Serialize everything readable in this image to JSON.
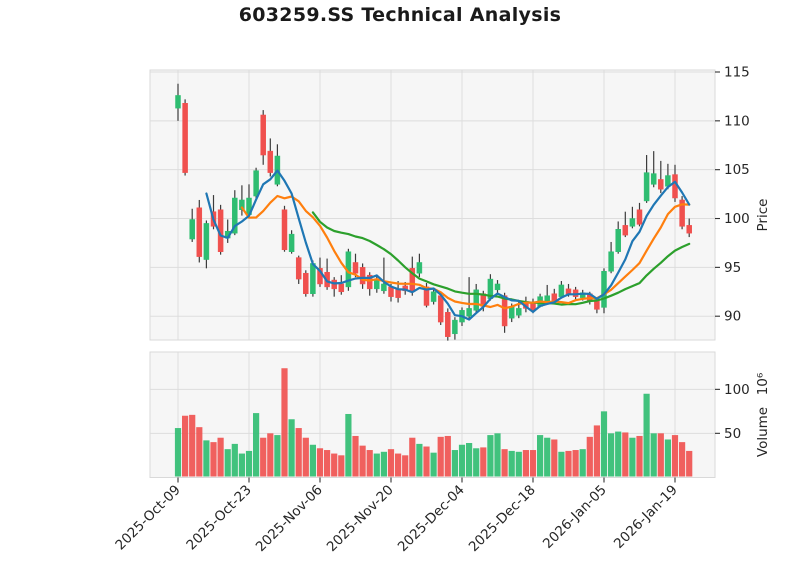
{
  "title": "603259.SS Technical Analysis",
  "price_axis": {
    "label": "Price",
    "ticks": [
      90,
      95,
      100,
      105,
      110,
      115
    ]
  },
  "volume_axis": {
    "label": "Volume",
    "offset_text": "10⁶",
    "ticks": [
      50,
      100
    ]
  },
  "x_axis": {
    "tick_labels": [
      "2025-Oct-09",
      "2025-Oct-23",
      "2025-Nov-06",
      "2025-Nov-20",
      "2025-Dec-04",
      "2025-Dec-18",
      "2026-Jan-05",
      "2026-Jan-19"
    ],
    "tick_indices": [
      0,
      10,
      20,
      30,
      40,
      50,
      60,
      70
    ]
  },
  "colors": {
    "up": "#2EBD71",
    "down": "#F0504E",
    "wick": "#3C3C3C",
    "ma5": "#1F77B4",
    "ma10": "#FF7F0E",
    "ma20": "#2CA02C",
    "panel_bg": "#F6F6F6",
    "grid": "#DDDDDD",
    "border": "#D9D9D9",
    "tick_text": "#262626"
  },
  "chart_data": {
    "type": "candlestick",
    "symbol": "603259.SS",
    "title": "603259.SS Technical Analysis",
    "ylabel_price": "Price",
    "ylabel_volume": "Volume",
    "volume_unit": "10^6",
    "price_ylim": [
      87.5,
      115.2
    ],
    "volume_ylim": [
      0,
      142
    ],
    "grid": true,
    "moving_average_windows": [
      5,
      10,
      20
    ],
    "dates": [
      "2025-10-09",
      "2025-10-10",
      "2025-10-13",
      "2025-10-14",
      "2025-10-15",
      "2025-10-16",
      "2025-10-17",
      "2025-10-20",
      "2025-10-21",
      "2025-10-22",
      "2025-10-23",
      "2025-10-24",
      "2025-10-27",
      "2025-10-28",
      "2025-10-29",
      "2025-10-30",
      "2025-10-31",
      "2025-11-03",
      "2025-11-04",
      "2025-11-05",
      "2025-11-06",
      "2025-11-07",
      "2025-11-10",
      "2025-11-11",
      "2025-11-12",
      "2025-11-13",
      "2025-11-14",
      "2025-11-17",
      "2025-11-18",
      "2025-11-19",
      "2025-11-20",
      "2025-11-21",
      "2025-11-24",
      "2025-11-25",
      "2025-11-26",
      "2025-11-27",
      "2025-11-28",
      "2025-12-01",
      "2025-12-02",
      "2025-12-03",
      "2025-12-04",
      "2025-12-05",
      "2025-12-08",
      "2025-12-09",
      "2025-12-10",
      "2025-12-11",
      "2025-12-12",
      "2025-12-15",
      "2025-12-16",
      "2025-12-17",
      "2025-12-18",
      "2025-12-19",
      "2025-12-22",
      "2025-12-23",
      "2025-12-24",
      "2025-12-25",
      "2025-12-26",
      "2025-12-29",
      "2025-12-30",
      "2025-12-31",
      "2026-01-05",
      "2026-01-06",
      "2026-01-07",
      "2026-01-08",
      "2026-01-09",
      "2026-01-12",
      "2026-01-13",
      "2026-01-14",
      "2026-01-15",
      "2026-01-16",
      "2026-01-19",
      "2026-01-20",
      "2026-01-21"
    ],
    "open": [
      111.3,
      111.8,
      97.9,
      101.1,
      95.8,
      100.7,
      100.9,
      98.0,
      98.5,
      100.9,
      100.4,
      102.3,
      110.6,
      106.9,
      103.5,
      100.9,
      96.6,
      96.0,
      94.4,
      92.3,
      94.9,
      94.5,
      93.7,
      93.3,
      93.0,
      95.5,
      95.0,
      94.2,
      92.8,
      92.6,
      93.0,
      92.8,
      93.1,
      94.9,
      94.4,
      93.0,
      91.5,
      92.1,
      90.4,
      88.2,
      89.4,
      90.0,
      90.6,
      92.3,
      91.8,
      92.7,
      92.1,
      89.8,
      90.1,
      91.5,
      91.3,
      91.0,
      91.3,
      92.3,
      92.0,
      92.8,
      92.7,
      91.9,
      92.3,
      91.7,
      90.9,
      94.6,
      96.6,
      99.3,
      99.2,
      100.9,
      101.8,
      103.5,
      104.0,
      103.3,
      104.5,
      101.9,
      99.3
    ],
    "high": [
      113.8,
      112.2,
      101.0,
      101.9,
      99.8,
      102.4,
      101.4,
      99.9,
      102.9,
      103.4,
      103.5,
      105.2,
      111.1,
      108.2,
      107.6,
      101.3,
      98.8,
      96.2,
      94.7,
      95.7,
      96.0,
      95.9,
      94.0,
      94.2,
      96.9,
      96.4,
      95.4,
      94.5,
      94.2,
      96.0,
      93.3,
      93.6,
      93.5,
      96.1,
      96.4,
      93.4,
      92.9,
      92.4,
      90.8,
      89.9,
      90.9,
      94.0,
      93.3,
      92.6,
      94.3,
      93.7,
      92.4,
      91.3,
      91.6,
      92.0,
      91.8,
      92.3,
      93.2,
      92.8,
      93.6,
      93.3,
      93.0,
      92.7,
      92.5,
      91.9,
      94.9,
      97.6,
      99.7,
      100.7,
      101.2,
      101.6,
      106.5,
      106.9,
      105.9,
      105.6,
      105.5,
      102.3,
      100.0
    ],
    "low": [
      110.0,
      104.4,
      97.6,
      95.5,
      94.9,
      98.9,
      96.3,
      97.5,
      98.3,
      100.3,
      100.1,
      101.9,
      105.5,
      104.3,
      103.3,
      96.6,
      96.4,
      93.3,
      92.0,
      92.0,
      93.0,
      92.7,
      92.0,
      92.2,
      92.6,
      94.0,
      92.8,
      92.1,
      92.4,
      92.3,
      91.5,
      91.4,
      92.2,
      92.1,
      94.0,
      90.9,
      91.2,
      89.1,
      87.5,
      87.6,
      89.0,
      89.8,
      90.4,
      90.5,
      91.6,
      92.3,
      88.3,
      89.4,
      89.8,
      90.4,
      90.3,
      90.9,
      91.2,
      91.3,
      91.8,
      92.0,
      91.7,
      91.6,
      91.2,
      90.3,
      90.3,
      94.4,
      96.4,
      98.1,
      99.0,
      99.2,
      101.6,
      103.2,
      102.6,
      103.0,
      101.7,
      98.9,
      98.1
    ],
    "close": [
      112.6,
      104.7,
      99.9,
      96.1,
      99.5,
      99.2,
      96.6,
      98.7,
      102.1,
      101.9,
      102.1,
      104.9,
      106.5,
      104.7,
      106.4,
      96.8,
      98.4,
      93.8,
      92.3,
      95.4,
      93.3,
      93.0,
      92.8,
      92.5,
      96.6,
      94.4,
      93.3,
      92.8,
      93.8,
      93.3,
      92.0,
      91.9,
      92.6,
      92.5,
      95.5,
      91.1,
      92.5,
      89.4,
      87.9,
      89.6,
      90.6,
      90.8,
      92.7,
      91.0,
      93.8,
      93.3,
      89.0,
      91.0,
      90.8,
      90.8,
      90.6,
      92.0,
      92.1,
      91.6,
      93.2,
      92.3,
      92.0,
      92.4,
      91.5,
      90.7,
      94.6,
      96.6,
      98.9,
      98.3,
      100.0,
      99.4,
      104.7,
      104.6,
      103.0,
      104.4,
      102.1,
      99.2,
      98.5
    ],
    "volume_millions": [
      56,
      70,
      71,
      57,
      42,
      40,
      45,
      32,
      38,
      27,
      30,
      73,
      45,
      50,
      48,
      124,
      66,
      56,
      45,
      37,
      33,
      31,
      27,
      25,
      72,
      47,
      36,
      31,
      27,
      29,
      32,
      27,
      25,
      45,
      38,
      35,
      28,
      46,
      47,
      31,
      37,
      39,
      33,
      34,
      48,
      50,
      32,
      30,
      29,
      31,
      31,
      48,
      45,
      43,
      29,
      30,
      31,
      32,
      46,
      59,
      75,
      50,
      52,
      51,
      45,
      47,
      95,
      50,
      50,
      43,
      48,
      40,
      30
    ],
    "volume_down_override_indices": [
      2
    ]
  }
}
